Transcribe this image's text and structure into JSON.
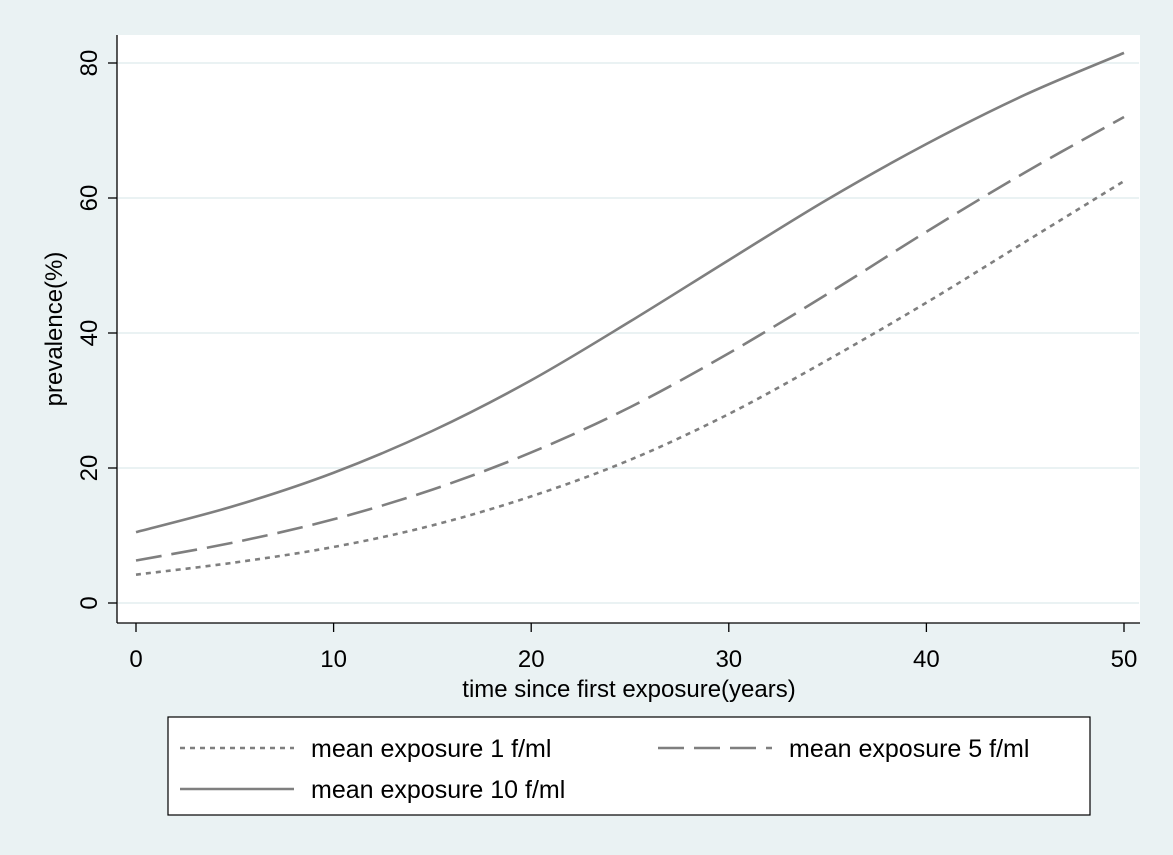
{
  "chart_data": {
    "type": "line",
    "title": "",
    "xlabel": "time since first exposure(years)",
    "ylabel": "prevalence(%)",
    "xlim": [
      0,
      50
    ],
    "ylim": [
      0,
      80
    ],
    "xticks": [
      0,
      10,
      20,
      30,
      40,
      50
    ],
    "yticks": [
      0,
      20,
      40,
      60,
      80
    ],
    "grid": "horizontal",
    "legend_position": "bottom",
    "line_color": "#7f7f7f",
    "x": [
      0,
      5,
      10,
      15,
      20,
      25,
      30,
      35,
      40,
      45,
      50
    ],
    "series": [
      {
        "name": "mean exposure 1 f/ml",
        "style": "dotted",
        "values": [
          4.2,
          6.0,
          8.3,
          11.5,
          15.8,
          21.2,
          28.0,
          36.0,
          44.5,
          53.5,
          62.5
        ]
      },
      {
        "name": "mean exposure 5 f/ml",
        "style": "dashed",
        "values": [
          6.3,
          9.0,
          12.4,
          16.8,
          22.3,
          29.0,
          37.0,
          45.8,
          55.0,
          63.8,
          72.0
        ]
      },
      {
        "name": "mean exposure 10 f/ml",
        "style": "solid",
        "values": [
          10.5,
          14.4,
          19.3,
          25.5,
          33.0,
          41.7,
          50.8,
          59.8,
          68.0,
          75.3,
          81.5
        ]
      }
    ]
  }
}
